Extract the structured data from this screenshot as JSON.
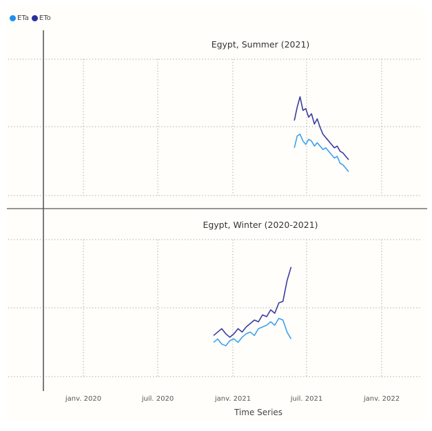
{
  "legend": [
    {
      "label": "ETa",
      "color": "#1f8fef"
    },
    {
      "label": "ETo",
      "color": "#2b2f9e"
    }
  ],
  "chart_data": {
    "type": "line",
    "xlabel": "Time Series",
    "x_ticks": [
      "janv. 2020",
      "juil. 2020",
      "janv. 2021",
      "juil. 2021",
      "janv. 2022"
    ],
    "x_range": [
      "2019-12",
      "2022-03"
    ],
    "grid": true,
    "panels": [
      {
        "title": "Egypt, Summer (2021)",
        "x": [
          "2021-06-01",
          "2021-06-08",
          "2021-06-15",
          "2021-06-22",
          "2021-06-29",
          "2021-07-06",
          "2021-07-13",
          "2021-07-20",
          "2021-07-27",
          "2021-08-03",
          "2021-08-10",
          "2021-08-17",
          "2021-08-24",
          "2021-08-31",
          "2021-09-07",
          "2021-09-14",
          "2021-09-21",
          "2021-09-28",
          "2021-10-05",
          "2021-10-12"
        ],
        "series": [
          {
            "name": "ETo",
            "color": "#3a3aa0",
            "values": [
              6.4,
              7.2,
              7.8,
              7.0,
              7.1,
              6.6,
              6.8,
              6.2,
              6.5,
              6.0,
              5.6,
              5.4,
              5.2,
              5.0,
              4.8,
              4.9,
              4.6,
              4.5,
              4.3,
              4.1
            ]
          },
          {
            "name": "ETa",
            "color": "#3aa0f0",
            "values": [
              4.8,
              5.5,
              5.6,
              5.2,
              5.0,
              5.3,
              5.2,
              4.9,
              5.1,
              4.9,
              4.7,
              4.8,
              4.6,
              4.4,
              4.2,
              4.3,
              3.9,
              3.8,
              3.6,
              3.4
            ]
          }
        ]
      },
      {
        "title": "Egypt, Winter (2020-2021)",
        "x": [
          "2020-11-15",
          "2020-11-25",
          "2020-12-05",
          "2020-12-15",
          "2020-12-25",
          "2021-01-04",
          "2021-01-14",
          "2021-01-24",
          "2021-02-03",
          "2021-02-13",
          "2021-02-23",
          "2021-03-05",
          "2021-03-15",
          "2021-03-25",
          "2021-04-04",
          "2021-04-14",
          "2021-04-24",
          "2021-05-04",
          "2021-05-14",
          "2021-05-24"
        ],
        "series": [
          {
            "name": "ETo",
            "color": "#3a3aa0",
            "values": [
              2.4,
              2.6,
              2.8,
              2.5,
              2.3,
              2.5,
              2.8,
              2.6,
              2.9,
              3.1,
              3.3,
              3.2,
              3.6,
              3.5,
              3.9,
              3.7,
              4.3,
              4.4,
              5.6,
              6.4
            ]
          },
          {
            "name": "ETa",
            "color": "#3aa0f0",
            "values": [
              2.0,
              2.2,
              1.9,
              1.8,
              2.1,
              2.2,
              2.0,
              2.3,
              2.5,
              2.6,
              2.4,
              2.8,
              2.9,
              3.0,
              3.2,
              3.0,
              3.4,
              3.3,
              2.6,
              2.2
            ]
          }
        ]
      }
    ]
  }
}
